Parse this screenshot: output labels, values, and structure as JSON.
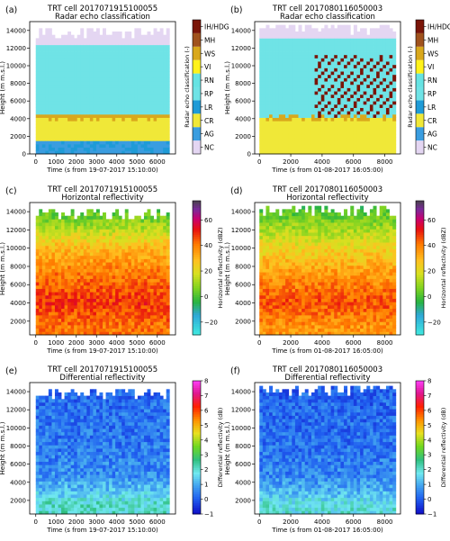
{
  "chart_data": [
    {
      "type": "heatmap",
      "panel_label": "(a)",
      "title": "TRT cell 2017071915100055",
      "subtitle": "Radar echo classification",
      "xlabel": "Time (s from 19-07-2017 15:10:00)",
      "ylabel": "Height (m m.s.l.)",
      "xticks": [
        "0",
        "1000",
        "2000",
        "3000",
        "4000",
        "5000",
        "6000"
      ],
      "xlim": [
        -300,
        6900
      ],
      "yticks": [
        "0",
        "2000",
        "4000",
        "6000",
        "8000",
        "10000",
        "12000",
        "14000"
      ],
      "ylim": [
        0,
        15000
      ],
      "colorbar": {
        "kind": "categorical",
        "label": "Radar echo classification (-)",
        "categories": [
          "NC",
          "AG",
          "CR",
          "LR",
          "RP",
          "RN",
          "VI",
          "WS",
          "MH",
          "IH/HDG"
        ],
        "colors": [
          "#e4d6f2",
          "#3a9de0",
          "#f0e838",
          "#1f9bd7",
          "#6fe3e6",
          "#66e3e3",
          "#fff21a",
          "#d9a81c",
          "#a0521d",
          "#7a1508"
        ]
      },
      "layers": [
        {
          "label": "AG",
          "y_range": [
            0,
            1200
          ]
        },
        {
          "label": "CR",
          "y_range": [
            1200,
            3800
          ]
        },
        {
          "label": "WS",
          "y_range": [
            3800,
            4200
          ]
        },
        {
          "label": "RP",
          "y_range": [
            4200,
            12200
          ]
        },
        {
          "label": "NC",
          "y_range": [
            12200,
            15000
          ]
        }
      ]
    },
    {
      "type": "heatmap",
      "panel_label": "(b)",
      "title": "TRT cell 2017080116050003",
      "subtitle": "Radar echo classification",
      "xlabel": "Time (s from 01-08-2017 16:05:00)",
      "ylabel": "Height (m m.s.l.)",
      "xticks": [
        "0",
        "2000",
        "4000",
        "6000",
        "8000"
      ],
      "xlim": [
        -300,
        9000
      ],
      "yticks": [
        "0",
        "2000",
        "4000",
        "6000",
        "8000",
        "10000",
        "12000",
        "14000"
      ],
      "ylim": [
        0,
        15000
      ],
      "colorbar": {
        "kind": "categorical",
        "label": "Radar echo classification (-)",
        "categories": [
          "NC",
          "AG",
          "CR",
          "LR",
          "RP",
          "RN",
          "VI",
          "WS",
          "MH",
          "IH/HDG"
        ],
        "colors": [
          "#e4d6f2",
          "#3a9de0",
          "#f0e838",
          "#1f9bd7",
          "#6fe3e6",
          "#66e3e3",
          "#fff21a",
          "#d9a81c",
          "#a0521d",
          "#7a1508"
        ]
      },
      "layers": [
        {
          "label": "CR",
          "y_range": [
            0,
            3900
          ]
        },
        {
          "label": "RP",
          "y_range": [
            3900,
            13000
          ]
        },
        {
          "label": "IH/HDG",
          "y_range": [
            4000,
            11000
          ],
          "note": "diagonal streaks after 3500 s"
        },
        {
          "label": "NC",
          "y_range": [
            13000,
            15000
          ]
        }
      ]
    },
    {
      "type": "heatmap",
      "panel_label": "(c)",
      "title": "TRT cell 2017071915100055",
      "subtitle": "Horizontal reflectivity",
      "xlabel": "Time (s from 19-07-2017 15:10:00)",
      "ylabel": "Height (m m.s.l.)",
      "xticks": [
        "0",
        "1000",
        "2000",
        "3000",
        "4000",
        "5000",
        "6000"
      ],
      "xlim": [
        -300,
        6900
      ],
      "yticks": [
        "2000",
        "4000",
        "6000",
        "8000",
        "10000",
        "12000",
        "14000"
      ],
      "ylim": [
        500,
        15000
      ],
      "colorbar": {
        "kind": "continuous",
        "label": "Horizontal reflectivity (dBZ)",
        "ticks": [
          "−20",
          "0",
          "20",
          "40",
          "60"
        ],
        "range": [
          -30,
          75
        ]
      },
      "profile": [
        {
          "height": 1000,
          "value": 40
        },
        {
          "height": 4000,
          "value": 48
        },
        {
          "height": 7000,
          "value": 40
        },
        {
          "height": 10000,
          "value": 28
        },
        {
          "height": 12000,
          "value": 12
        },
        {
          "height": 14000,
          "value": 0
        }
      ]
    },
    {
      "type": "heatmap",
      "panel_label": "(d)",
      "title": "TRT cell 2017080116050003",
      "subtitle": "Horizontal reflectivity",
      "xlabel": "Time (s from 01-08-2017 16:05:00)",
      "ylabel": "Height (m m.s.l.)",
      "xticks": [
        "0",
        "2000",
        "4000",
        "6000",
        "8000"
      ],
      "xlim": [
        -300,
        9000
      ],
      "yticks": [
        "2000",
        "4000",
        "6000",
        "8000",
        "10000",
        "12000",
        "14000"
      ],
      "ylim": [
        500,
        15000
      ],
      "colorbar": {
        "kind": "continuous",
        "label": "Horizontal reflectivity (dBZ)",
        "ticks": [
          "−20",
          "0",
          "20",
          "40",
          "60"
        ],
        "range": [
          -30,
          75
        ]
      },
      "profile": [
        {
          "height": 1000,
          "value": 35
        },
        {
          "height": 4000,
          "value": 45
        },
        {
          "height": 7000,
          "value": 35
        },
        {
          "height": 10000,
          "value": 22
        },
        {
          "height": 12000,
          "value": 10
        },
        {
          "height": 14000,
          "value": 0
        }
      ]
    },
    {
      "type": "heatmap",
      "panel_label": "(e)",
      "title": "TRT cell 2017071915100055",
      "subtitle": "Differential reflectivity",
      "xlabel": "Time (s from 19-07-2017 15:10:00)",
      "ylabel": "Height (m m.s.l.)",
      "xticks": [
        "0",
        "1000",
        "2000",
        "3000",
        "4000",
        "5000",
        "6000"
      ],
      "xlim": [
        -300,
        6900
      ],
      "yticks": [
        "2000",
        "4000",
        "6000",
        "8000",
        "10000",
        "12000",
        "14000"
      ],
      "ylim": [
        500,
        15000
      ],
      "colorbar": {
        "kind": "continuous",
        "label": "Differential reflectivity (dB)",
        "ticks": [
          "−1",
          "0",
          "1",
          "2",
          "3",
          "4",
          "5",
          "6",
          "7",
          "8"
        ],
        "range": [
          -1,
          8
        ]
      },
      "profile": [
        {
          "height": 1500,
          "value": 2.0
        },
        {
          "height": 3000,
          "value": 1.2
        },
        {
          "height": 4500,
          "value": 0.6
        },
        {
          "height": 8000,
          "value": 0.3
        },
        {
          "height": 12000,
          "value": 0.2
        },
        {
          "height": 14000,
          "value": 0.1
        }
      ]
    },
    {
      "type": "heatmap",
      "panel_label": "(f)",
      "title": "TRT cell 2017080116050003",
      "subtitle": "Differential reflectivity",
      "xlabel": "Time (s from 01-08-2017 16:05:00)",
      "ylabel": "Height (m m.s.l.)",
      "xticks": [
        "0",
        "2000",
        "4000",
        "6000",
        "8000"
      ],
      "xlim": [
        -300,
        9000
      ],
      "yticks": [
        "2000",
        "4000",
        "6000",
        "8000",
        "10000",
        "12000",
        "14000"
      ],
      "ylim": [
        500,
        15000
      ],
      "colorbar": {
        "kind": "continuous",
        "label": "Differential reflectivity (dB)",
        "ticks": [
          "−1",
          "0",
          "1",
          "2",
          "3",
          "4",
          "5",
          "6",
          "7",
          "8"
        ],
        "range": [
          -1,
          8
        ]
      },
      "profile": [
        {
          "height": 1500,
          "value": 1.8
        },
        {
          "height": 3000,
          "value": 1.0
        },
        {
          "height": 4500,
          "value": 0.5
        },
        {
          "height": 8000,
          "value": 0.2
        },
        {
          "height": 12000,
          "value": 0.1
        },
        {
          "height": 14000,
          "value": 0.0
        }
      ]
    }
  ]
}
